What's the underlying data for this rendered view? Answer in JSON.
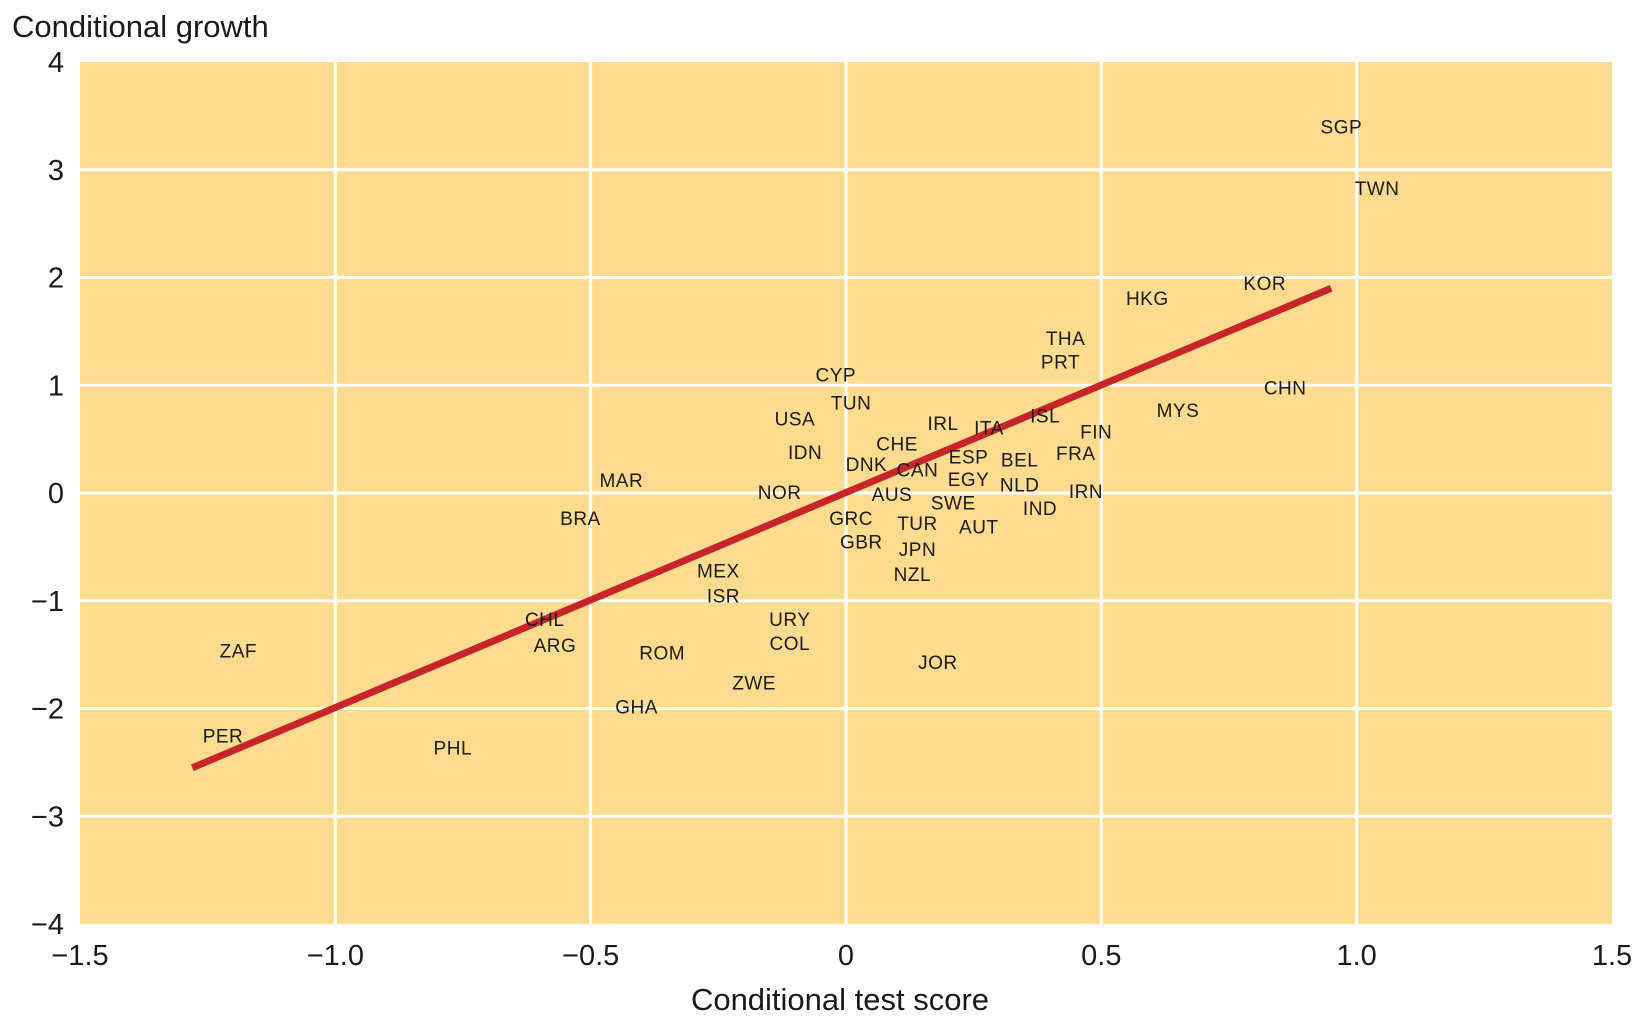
{
  "chart_data": {
    "type": "scatter",
    "title": "",
    "xlabel": "Conditional test score",
    "ylabel": "Conditional growth",
    "xlim": [
      -1.5,
      1.5
    ],
    "ylim": [
      -4,
      4
    ],
    "xticks": [
      -1.5,
      -1.0,
      -0.5,
      0,
      0.5,
      1.0,
      1.5
    ],
    "xtick_labels": [
      "−1.5",
      "−1.0",
      "−0.5",
      "0",
      "0.5",
      "1.0",
      "1.5"
    ],
    "yticks": [
      4,
      3,
      2,
      1,
      0,
      -1,
      -2,
      -3,
      -4
    ],
    "ytick_labels": [
      "4",
      "3",
      "2",
      "1",
      "0",
      "−1",
      "−2",
      "−3",
      "−4"
    ],
    "grid": true,
    "colors": {
      "plot_background": "#fddb8f",
      "grid": "#ffffff",
      "fit_line": "#c8252b",
      "text": "#1a1a1a"
    },
    "fit_line": {
      "x": [
        -1.28,
        0.95
      ],
      "y": [
        -2.55,
        1.9
      ]
    },
    "points": [
      {
        "label": "SGP",
        "x": 0.97,
        "y": 3.4
      },
      {
        "label": "TWN",
        "x": 1.04,
        "y": 2.83
      },
      {
        "label": "KOR",
        "x": 0.82,
        "y": 1.95
      },
      {
        "label": "HKG",
        "x": 0.59,
        "y": 1.81
      },
      {
        "label": "CHN",
        "x": 0.86,
        "y": 0.98
      },
      {
        "label": "THA",
        "x": 0.43,
        "y": 1.44
      },
      {
        "label": "PRT",
        "x": 0.42,
        "y": 1.22
      },
      {
        "label": "MYS",
        "x": 0.65,
        "y": 0.77
      },
      {
        "label": "ISL",
        "x": 0.39,
        "y": 0.72
      },
      {
        "label": "FIN",
        "x": 0.49,
        "y": 0.57
      },
      {
        "label": "FRA",
        "x": 0.45,
        "y": 0.37
      },
      {
        "label": "IRN",
        "x": 0.47,
        "y": 0.02
      },
      {
        "label": "IND",
        "x": 0.38,
        "y": -0.14
      },
      {
        "label": "NLD",
        "x": 0.34,
        "y": 0.08
      },
      {
        "label": "BEL",
        "x": 0.34,
        "y": 0.31
      },
      {
        "label": "ITA",
        "x": 0.28,
        "y": 0.61
      },
      {
        "label": "IRL",
        "x": 0.19,
        "y": 0.65
      },
      {
        "label": "ESP",
        "x": 0.24,
        "y": 0.34
      },
      {
        "label": "EGY",
        "x": 0.24,
        "y": 0.13
      },
      {
        "label": "AUT",
        "x": 0.26,
        "y": -0.31
      },
      {
        "label": "SWE",
        "x": 0.21,
        "y": -0.09
      },
      {
        "label": "TUR",
        "x": 0.14,
        "y": -0.28
      },
      {
        "label": "JPN",
        "x": 0.14,
        "y": -0.52
      },
      {
        "label": "NZL",
        "x": 0.13,
        "y": -0.75
      },
      {
        "label": "CHE",
        "x": 0.1,
        "y": 0.46
      },
      {
        "label": "CAN",
        "x": 0.14,
        "y": 0.22
      },
      {
        "label": "AUS",
        "x": 0.09,
        "y": -0.01
      },
      {
        "label": "DNK",
        "x": 0.04,
        "y": 0.27
      },
      {
        "label": "GRC",
        "x": 0.01,
        "y": -0.23
      },
      {
        "label": "GBR",
        "x": 0.03,
        "y": -0.45
      },
      {
        "label": "CYP",
        "x": -0.02,
        "y": 1.1
      },
      {
        "label": "TUN",
        "x": 0.01,
        "y": 0.84
      },
      {
        "label": "USA",
        "x": -0.1,
        "y": 0.69
      },
      {
        "label": "IDN",
        "x": -0.08,
        "y": 0.38
      },
      {
        "label": "NOR",
        "x": -0.13,
        "y": 0.01
      },
      {
        "label": "MAR",
        "x": -0.44,
        "y": 0.12
      },
      {
        "label": "BRA",
        "x": -0.52,
        "y": -0.23
      },
      {
        "label": "MEX",
        "x": -0.25,
        "y": -0.72
      },
      {
        "label": "ISR",
        "x": -0.24,
        "y": -0.95
      },
      {
        "label": "CHL",
        "x": -0.59,
        "y": -1.17
      },
      {
        "label": "ARG",
        "x": -0.57,
        "y": -1.41
      },
      {
        "label": "URY",
        "x": -0.11,
        "y": -1.17
      },
      {
        "label": "COL",
        "x": -0.11,
        "y": -1.39
      },
      {
        "label": "ROM",
        "x": -0.36,
        "y": -1.48
      },
      {
        "label": "ZWE",
        "x": -0.18,
        "y": -1.76
      },
      {
        "label": "GHA",
        "x": -0.41,
        "y": -1.98
      },
      {
        "label": "JOR",
        "x": 0.18,
        "y": -1.57
      },
      {
        "label": "ZAF",
        "x": -1.19,
        "y": -1.46
      },
      {
        "label": "PER",
        "x": -1.22,
        "y": -2.25
      },
      {
        "label": "PHL",
        "x": -0.77,
        "y": -2.36
      }
    ]
  }
}
